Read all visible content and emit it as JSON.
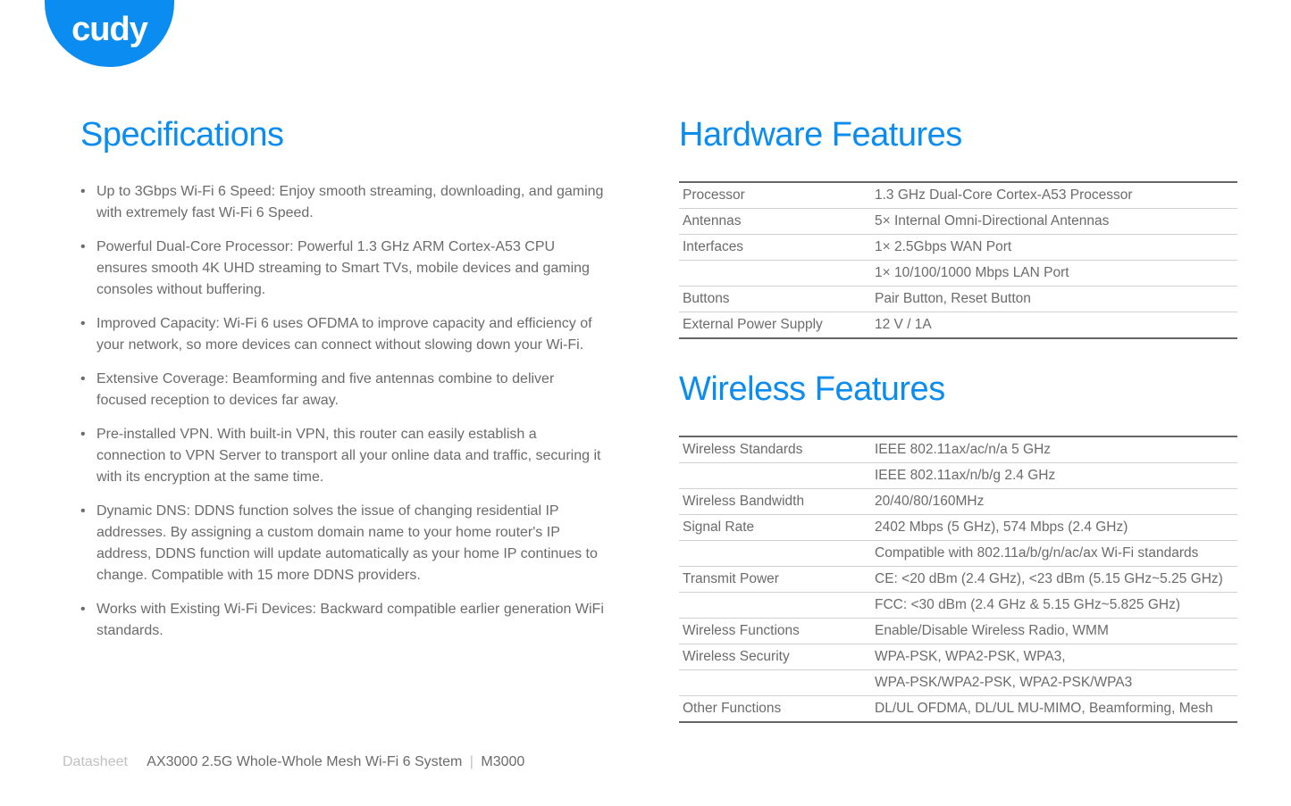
{
  "brand": {
    "name": "cudy"
  },
  "colors": {
    "accent": "#0a8cf0",
    "text": "#6b6b6b",
    "light": "#c0c0c0",
    "border_dark": "#666666",
    "border_light": "#d0d0d0",
    "background": "#ffffff"
  },
  "specifications": {
    "title": "Specifications",
    "items": [
      "Up to 3Gbps Wi-Fi 6 Speed: Enjoy smooth streaming, downloading, and gaming with extremely fast Wi-Fi 6 Speed.",
      "Powerful Dual-Core Processor: Powerful 1.3 GHz ARM Cortex-A53 CPU ensures smooth 4K UHD streaming to Smart TVs, mobile devices and gaming consoles without buffering.",
      "Improved Capacity: Wi-Fi 6 uses OFDMA to improve capacity and efficiency of your network, so more devices can connect without slowing down your Wi-Fi.",
      "Extensive Coverage: Beamforming and five antennas combine to deliver focused reception to devices far away.",
      "Pre-installed VPN. With built-in VPN, this router can easily establish a connection to VPN Server to transport all your online data and traffic, securing it with its encryption at the same time.",
      "Dynamic DNS: DDNS function solves the issue of changing residential IP addresses. By assigning a custom domain name to your home router's IP address, DDNS function will update automatically as your home IP continues to change. Compatible with 15 more DDNS providers.",
      "Works with Existing Wi-Fi Devices: Backward compatible earlier generation WiFi standards."
    ]
  },
  "hardware": {
    "title": "Hardware Features",
    "rows": [
      {
        "label": "Processor",
        "value": "1.3 GHz Dual-Core Cortex-A53 Processor"
      },
      {
        "label": "Antennas",
        "value": "5× Internal Omni-Directional Antennas"
      },
      {
        "label": "Interfaces",
        "value": "1× 2.5Gbps WAN Port"
      },
      {
        "label": "",
        "value": "1× 10/100/1000 Mbps LAN Port"
      },
      {
        "label": "Buttons",
        "value": "Pair Button, Reset Button"
      },
      {
        "label": "External Power Supply",
        "value": "12 V / 1A"
      }
    ]
  },
  "wireless": {
    "title": "Wireless Features",
    "rows": [
      {
        "label": "Wireless Standards",
        "value": "IEEE 802.11ax/ac/n/a 5 GHz"
      },
      {
        "label": "",
        "value": "IEEE 802.11ax/n/b/g 2.4 GHz"
      },
      {
        "label": "Wireless Bandwidth",
        "value": "20/40/80/160MHz"
      },
      {
        "label": "Signal Rate",
        "value": "2402 Mbps (5 GHz), 574 Mbps (2.4 GHz)"
      },
      {
        "label": "",
        "value": "Compatible with 802.11a/b/g/n/ac/ax Wi-Fi standards"
      },
      {
        "label": "Transmit Power",
        "value": "CE: <20 dBm (2.4 GHz), <23 dBm (5.15 GHz~5.25 GHz)"
      },
      {
        "label": "",
        "value": "FCC: <30 dBm (2.4 GHz & 5.15 GHz~5.825 GHz)"
      },
      {
        "label": "Wireless Functions",
        "value": "Enable/Disable Wireless Radio, WMM"
      },
      {
        "label": "Wireless Security",
        "value": "WPA-PSK, WPA2-PSK, WPA3,"
      },
      {
        "label": "",
        "value": "WPA-PSK/WPA2-PSK, WPA2-PSK/WPA3"
      },
      {
        "label": "Other Functions",
        "value": "DL/UL OFDMA, DL/UL MU-MIMO, Beamforming, Mesh"
      }
    ]
  },
  "footer": {
    "label": "Datasheet",
    "product": "AX3000 2.5G Whole-Whole Mesh Wi-Fi 6 System",
    "model": "M3000"
  }
}
